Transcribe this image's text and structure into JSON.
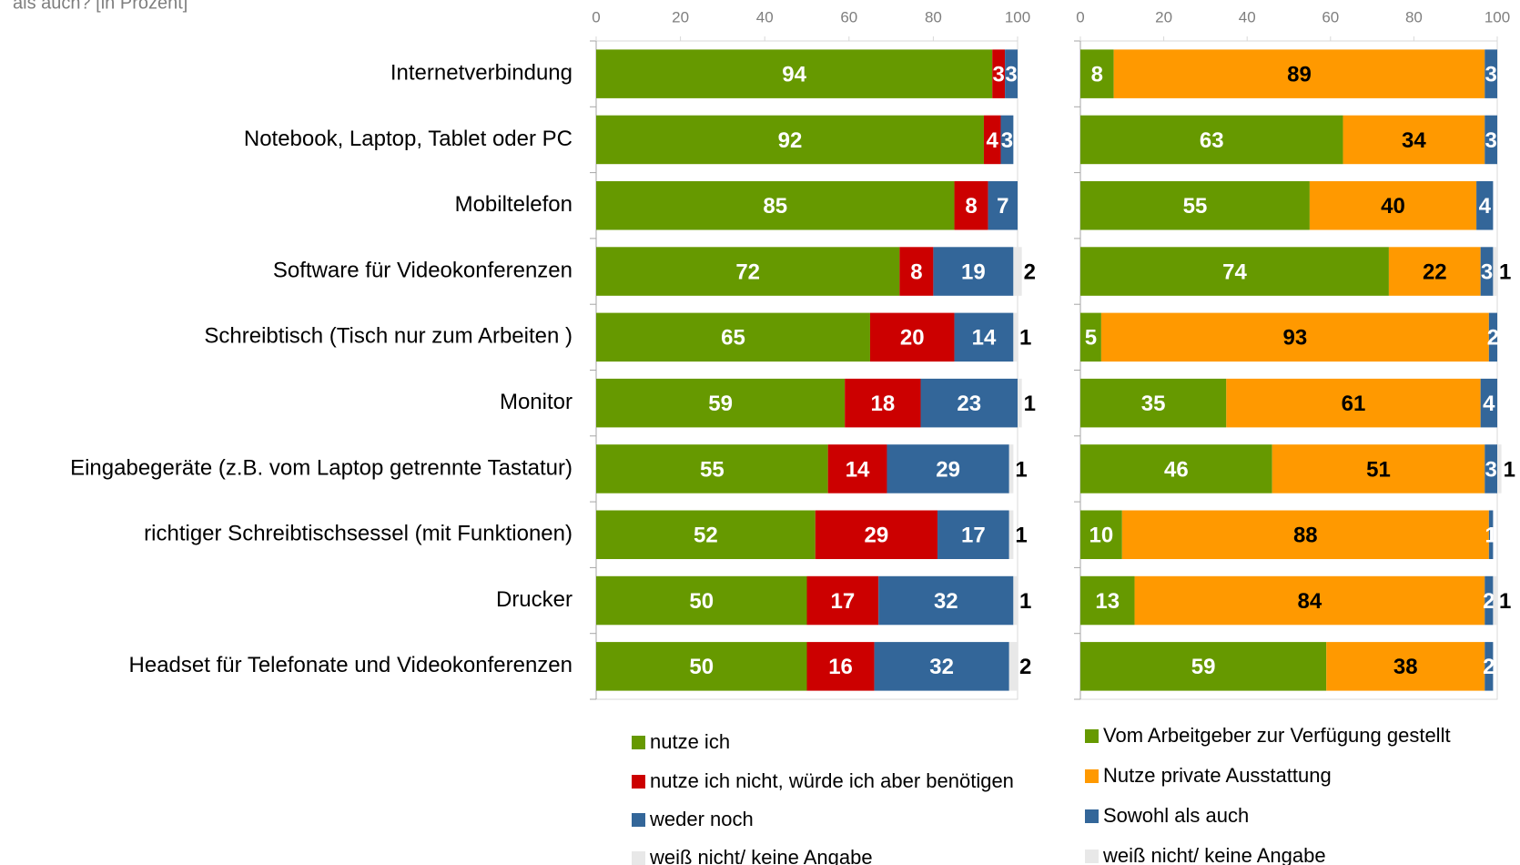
{
  "subtitle": "als auch? [in Prozent]",
  "chart_data": [
    {
      "type": "stacked-barh",
      "categories": [
        "Internetverbindung",
        "Notebook, Laptop, Tablet oder PC",
        "Mobiltelefon",
        "Software für Videokonferenzen",
        "Schreibtisch (Tisch nur zum Arbeiten )",
        "Monitor",
        "Eingabegeräte (z.B. vom Laptop getrennte Tastatur)",
        "richtiger Schreibtischsessel (mit Funktionen)",
        "Drucker",
        "Headset für Telefonate und Videokonferenzen"
      ],
      "xlim": [
        0,
        100
      ],
      "xticks": [
        0,
        20,
        40,
        60,
        80,
        100
      ],
      "series": [
        {
          "name": "nutze ich",
          "color": "#669900",
          "label_color": "#ffffff",
          "values": [
            94,
            92,
            85,
            72,
            65,
            59,
            55,
            52,
            50,
            50
          ]
        },
        {
          "name": "nutze ich nicht, würde ich aber benötigen",
          "color": "#cc0000",
          "label_color": "#ffffff",
          "values": [
            3,
            4,
            8,
            8,
            20,
            18,
            14,
            29,
            17,
            16
          ]
        },
        {
          "name": "weder noch",
          "color": "#336699",
          "label_color": "#ffffff",
          "values": [
            3,
            3,
            7,
            19,
            14,
            23,
            29,
            17,
            32,
            32
          ]
        },
        {
          "name": "weiß nicht/ keine Angabe",
          "color": "#e8e8e8",
          "label_color": "#000000",
          "values": [
            null,
            null,
            null,
            2,
            1,
            1,
            1,
            1,
            1,
            2
          ]
        }
      ]
    },
    {
      "type": "stacked-barh",
      "xlim": [
        0,
        100
      ],
      "xticks": [
        0,
        20,
        40,
        60,
        80,
        100
      ],
      "series": [
        {
          "name": "Vom Arbeitgeber zur Verfügung gestellt",
          "color": "#669900",
          "label_color": "#ffffff",
          "values": [
            8,
            63,
            55,
            74,
            5,
            35,
            46,
            10,
            13,
            59
          ]
        },
        {
          "name": "Nutze private Ausstattung",
          "color": "#ff9900",
          "label_color": "#000000",
          "values": [
            89,
            34,
            40,
            22,
            93,
            61,
            51,
            88,
            84,
            38
          ]
        },
        {
          "name": "Sowohl als auch",
          "color": "#336699",
          "label_color": "#ffffff",
          "values": [
            3,
            3,
            4,
            3,
            2,
            4,
            3,
            1,
            2,
            2
          ]
        },
        {
          "name": "weiß nicht/ keine Angabe",
          "color": "#e8e8e8",
          "label_color": "#000000",
          "values": [
            null,
            null,
            null,
            1,
            null,
            null,
            1,
            null,
            1,
            null
          ]
        }
      ]
    }
  ]
}
